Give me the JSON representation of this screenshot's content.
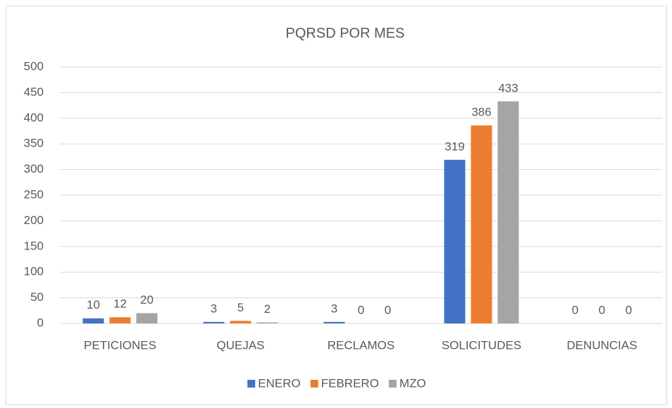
{
  "chart_data": {
    "type": "bar",
    "title": "PQRSD  POR MES",
    "categories": [
      "PETICIONES",
      "QUEJAS",
      "RECLAMOS",
      "SOLICITUDES",
      "DENUNCIAS"
    ],
    "series": [
      {
        "name": "ENERO",
        "color": "#4472c4",
        "values": [
          10,
          3,
          3,
          319,
          0
        ]
      },
      {
        "name": "FEBRERO",
        "color": "#ed7d31",
        "values": [
          12,
          5,
          0,
          386,
          0
        ]
      },
      {
        "name": "MZO",
        "color": "#a5a5a5",
        "values": [
          20,
          2,
          0,
          433,
          0
        ]
      }
    ],
    "ylim": [
      0,
      500
    ],
    "yticks": [
      0,
      50,
      100,
      150,
      200,
      250,
      300,
      350,
      400,
      450,
      500
    ],
    "grid": true,
    "legend": "bottom"
  }
}
